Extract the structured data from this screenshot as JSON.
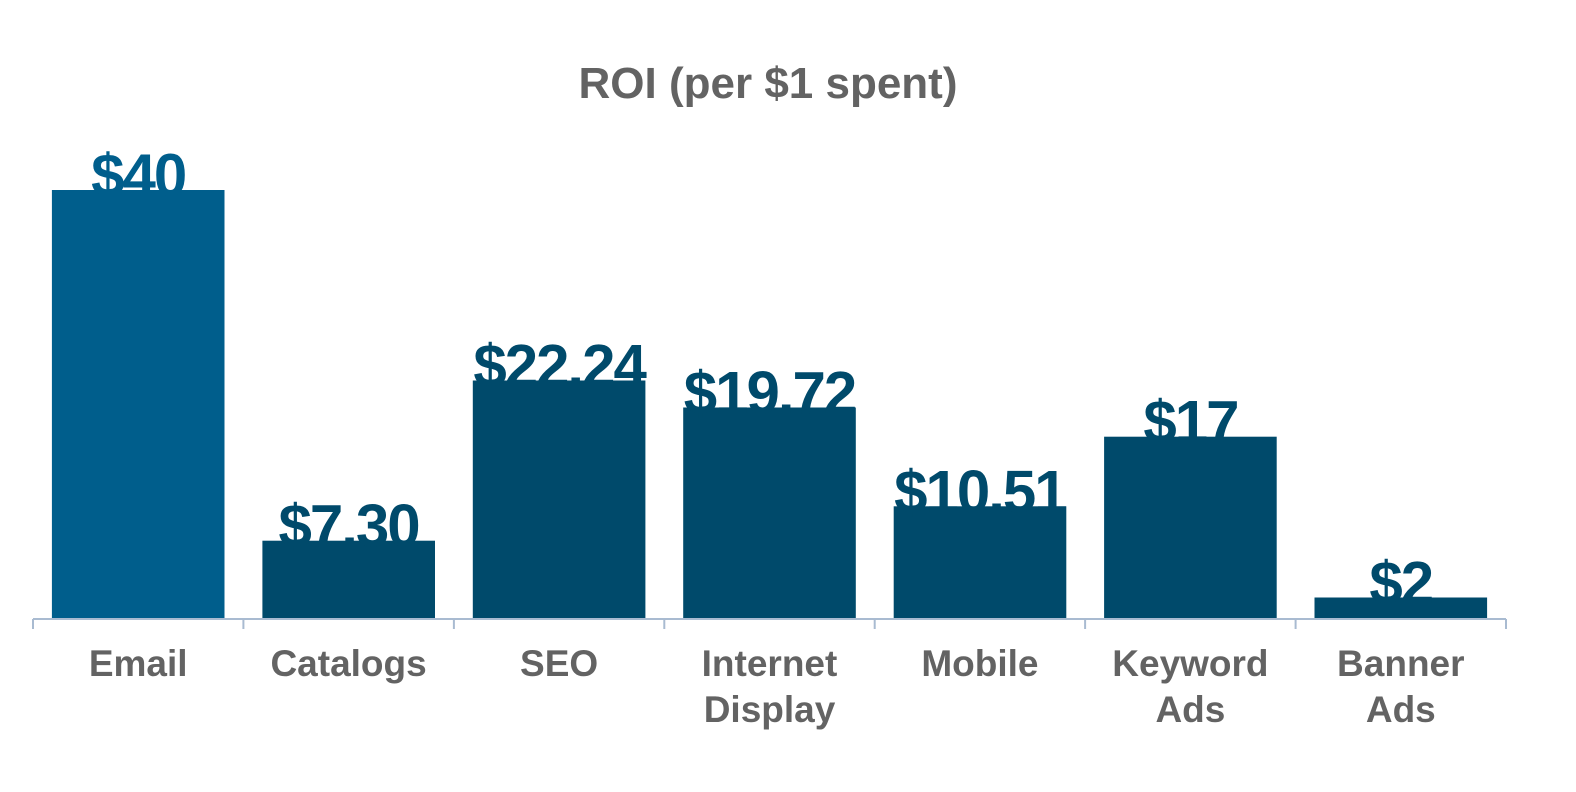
{
  "chart_data": {
    "type": "bar",
    "title": "ROI (per $1 spent)",
    "xlabel": "",
    "ylabel": "",
    "categories": [
      "Email",
      "Catalogs",
      "SEO",
      "Internet Display",
      "Mobile",
      "Keyword Ads",
      "Banner Ads"
    ],
    "values": [
      40,
      7.3,
      22.24,
      19.72,
      10.51,
      17,
      2
    ],
    "data_labels": [
      "$40",
      "$7.30",
      "$22.24",
      "$19.72",
      "$10.51",
      "$17",
      "$2"
    ],
    "ylim": [
      0,
      40
    ],
    "grid": false,
    "legend": "none",
    "colors": {
      "highlight_bar": "#005E8C",
      "bar": "#004A6B",
      "highlight_label": "#005E8C",
      "label": "#004A6B",
      "axis": "#A9BBD1",
      "text": "#636363"
    }
  }
}
